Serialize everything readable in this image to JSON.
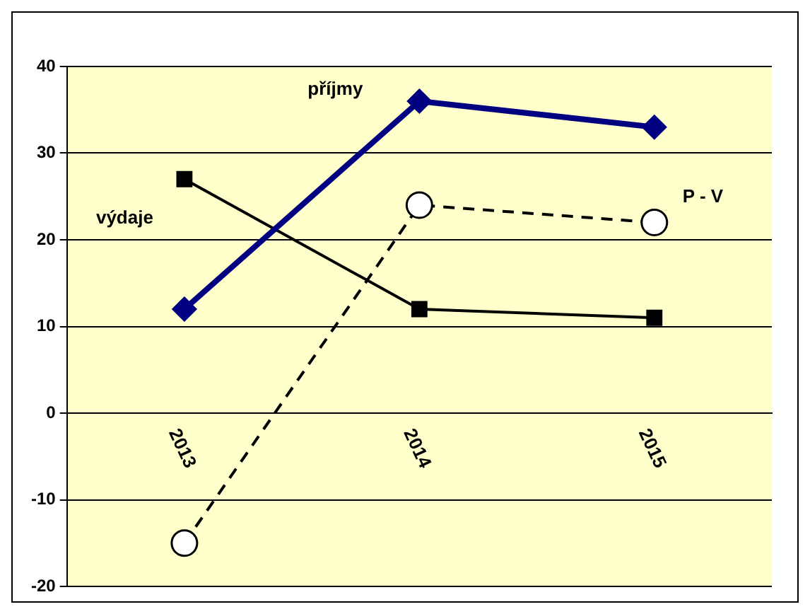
{
  "chart_data": {
    "type": "line",
    "categories": [
      "2013",
      "2014",
      "2015"
    ],
    "series": [
      {
        "name": "příjmy",
        "color": "#000080",
        "values": [
          12,
          36,
          33
        ],
        "marker": "diamond",
        "line_style": "solid"
      },
      {
        "name": "výdaje",
        "color": "#000000",
        "values": [
          27,
          12,
          11
        ],
        "marker": "square",
        "line_style": "solid"
      },
      {
        "name": "P - V",
        "color": "#000000",
        "values": [
          -15,
          24,
          22
        ],
        "marker": "circle",
        "line_style": "dashed"
      }
    ],
    "ylim": [
      -20,
      40
    ],
    "yticks": [
      -20,
      -10,
      0,
      10,
      20,
      30,
      40
    ],
    "grid": "y",
    "legend": false
  }
}
